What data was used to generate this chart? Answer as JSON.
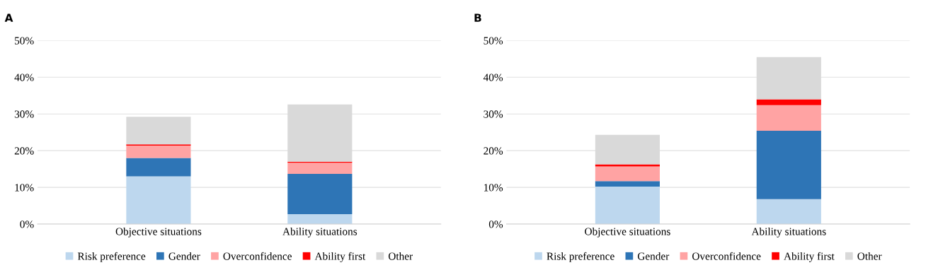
{
  "chart_data": [
    {
      "type": "bar",
      "title": "A",
      "stacked": true,
      "categories": [
        "Objective situations",
        "Ability situations"
      ],
      "series": [
        {
          "name": "Risk preference",
          "color": "#bdd7ee",
          "values": [
            13.0,
            2.7
          ]
        },
        {
          "name": "Gender",
          "color": "#2e75b6",
          "values": [
            5.0,
            11.0
          ]
        },
        {
          "name": "Overconfidence",
          "color": "#ffa3a3",
          "values": [
            3.4,
            3.0
          ]
        },
        {
          "name": "Ability first",
          "color": "#ff0000",
          "values": [
            0.3,
            0.3
          ]
        },
        {
          "name": "Other",
          "color": "#d9d9d9",
          "values": [
            7.5,
            15.6
          ]
        }
      ],
      "ylim": [
        0,
        50
      ],
      "yticks": [
        {
          "value": 0,
          "label": "0%"
        },
        {
          "value": 10,
          "label": "10%"
        },
        {
          "value": 20,
          "label": "20%"
        },
        {
          "value": 30,
          "label": "30%"
        },
        {
          "value": 40,
          "label": "40%"
        },
        {
          "value": 50,
          "label": "50%"
        }
      ],
      "grid": "y",
      "legend": "bottom"
    },
    {
      "type": "bar",
      "title": "B",
      "stacked": true,
      "categories": [
        "Objective situations",
        "Ability situations"
      ],
      "series": [
        {
          "name": "Risk preference",
          "color": "#bdd7ee",
          "values": [
            10.2,
            6.8
          ]
        },
        {
          "name": "Gender",
          "color": "#2e75b6",
          "values": [
            1.5,
            18.6
          ]
        },
        {
          "name": "Overconfidence",
          "color": "#ffa3a3",
          "values": [
            4.0,
            7.0
          ]
        },
        {
          "name": "Ability first",
          "color": "#ff0000",
          "values": [
            0.6,
            1.6
          ]
        },
        {
          "name": "Other",
          "color": "#d9d9d9",
          "values": [
            8.0,
            11.5
          ]
        }
      ],
      "ylim": [
        0,
        50
      ],
      "yticks": [
        {
          "value": 0,
          "label": "0%"
        },
        {
          "value": 10,
          "label": "10%"
        },
        {
          "value": 20,
          "label": "20%"
        },
        {
          "value": 30,
          "label": "30%"
        },
        {
          "value": 40,
          "label": "40%"
        },
        {
          "value": 50,
          "label": "50%"
        }
      ],
      "grid": "y",
      "legend": "bottom"
    }
  ]
}
